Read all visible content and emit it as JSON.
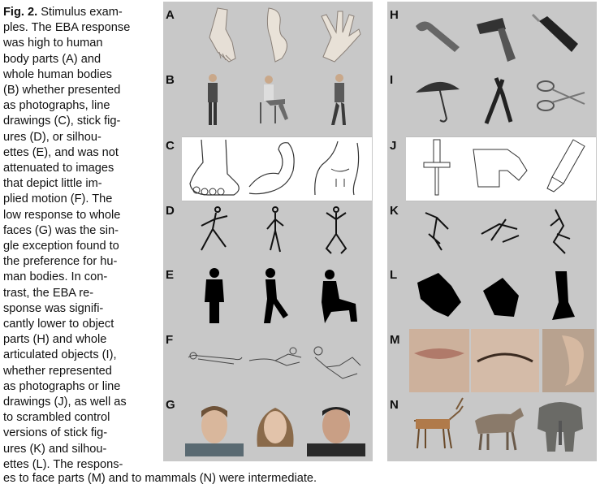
{
  "caption": {
    "lines": [
      "",
      "ples. The EBA response",
      "was high to human",
      "body parts (A) and",
      "whole human bodies",
      "(B) whether presented",
      "as photographs, line",
      "drawings (C), stick fig-",
      "ures (D), or silhou-",
      "ettes (E), and was not",
      "attenuated to images",
      "that depict little im-",
      "plied motion (F). The",
      "low response to whole",
      "faces (G) was the sin-",
      "gle exception found to",
      "the preference for hu-",
      "man bodies. In con-",
      "trast, the EBA re-",
      "sponse was signifi-",
      "cantly lower to object",
      "parts (H) and whole",
      "articulated objects (I),",
      "whether represented",
      "as photographs or line",
      "drawings (J), as well as",
      "to scrambled control",
      "versions of stick fig-",
      "ures (K) and silhou-",
      "ettes (L). The respons-"
    ],
    "fig_label": "Fig. 2.",
    "first_line_rest": " Stimulus exam-",
    "tail": "es to face parts (M) and to mammals (N) were intermediate."
  },
  "panels": {
    "left_labels": [
      "A",
      "B",
      "C",
      "D",
      "E",
      "F",
      "G"
    ],
    "right_labels": [
      "H",
      "I",
      "J",
      "K",
      "L",
      "M",
      "N"
    ]
  },
  "colors": {
    "panel_gray": "#c8c8c8",
    "ink": "#111111"
  }
}
